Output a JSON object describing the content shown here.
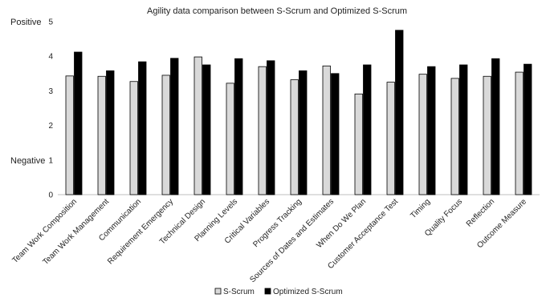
{
  "chart_data": {
    "type": "bar",
    "title": "Agility data comparison between S-Scrum and Optimized S-Scrum",
    "xlabel": "",
    "ylabel": "",
    "ylim": [
      0,
      5
    ],
    "yticks": [
      "0",
      "1",
      "2",
      "3",
      "4",
      "5"
    ],
    "y_annotations": [
      {
        "label": "Positive",
        "value": 5
      },
      {
        "label": "Negative",
        "value": 1
      }
    ],
    "categories": [
      "Team Work Composition",
      "Team Work Management",
      "Communication",
      "Requirement Emergency",
      "Technical Design",
      "Planning Levels",
      "Critical Variables",
      "Progress Tracking",
      "Sources of Dates and Estimates",
      "When Do We Plan",
      "Customer Acceptance Test",
      "Timing",
      "Quality Focus",
      "Reflection",
      "Outcome Measure"
    ],
    "series": [
      {
        "name": "S-Scrum",
        "color": "#d9d9d9",
        "values": [
          3.43,
          3.42,
          3.27,
          3.45,
          3.98,
          3.22,
          3.7,
          3.32,
          3.72,
          2.91,
          3.25,
          3.48,
          3.36,
          3.42,
          3.54
        ]
      },
      {
        "name": "Optimized S-Scrum",
        "color": "#000000",
        "values": [
          4.12,
          3.58,
          3.84,
          3.94,
          3.75,
          3.93,
          3.87,
          3.58,
          3.5,
          3.75,
          4.75,
          3.7,
          3.75,
          3.93,
          3.77
        ]
      }
    ],
    "grid": false,
    "legend_position": "bottom"
  }
}
